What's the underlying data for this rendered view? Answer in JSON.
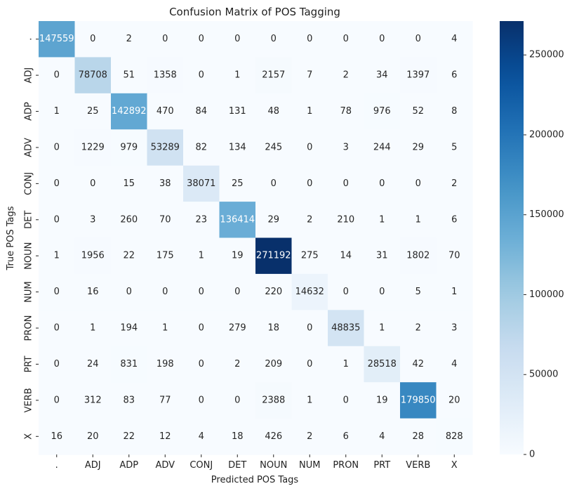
{
  "chart_data": {
    "type": "heatmap",
    "title": "Confusion Matrix of POS Tagging",
    "xlabel": "Predicted POS Tags",
    "ylabel": "True POS Tags",
    "x_categories": [
      ".",
      "ADJ",
      "ADP",
      "ADV",
      "CONJ",
      "DET",
      "NOUN",
      "NUM",
      "PRON",
      "PRT",
      "VERB",
      "X"
    ],
    "y_categories": [
      ".",
      "ADJ",
      "ADP",
      "ADV",
      "CONJ",
      "DET",
      "NOUN",
      "NUM",
      "PRON",
      "PRT",
      "VERB",
      "X"
    ],
    "values": [
      [
        147559,
        0,
        2,
        0,
        0,
        0,
        0,
        0,
        0,
        0,
        0,
        4
      ],
      [
        0,
        78708,
        51,
        1358,
        0,
        1,
        2157,
        7,
        2,
        34,
        1397,
        6
      ],
      [
        1,
        25,
        142892,
        470,
        84,
        131,
        48,
        1,
        78,
        976,
        52,
        8
      ],
      [
        0,
        1229,
        979,
        53289,
        82,
        134,
        245,
        0,
        3,
        244,
        29,
        5
      ],
      [
        0,
        0,
        15,
        38,
        38071,
        25,
        0,
        0,
        0,
        0,
        0,
        2
      ],
      [
        0,
        3,
        260,
        70,
        23,
        136414,
        29,
        2,
        210,
        1,
        1,
        6
      ],
      [
        1,
        1956,
        22,
        175,
        1,
        19,
        271192,
        275,
        14,
        31,
        1802,
        70
      ],
      [
        0,
        16,
        0,
        0,
        0,
        0,
        220,
        14632,
        0,
        0,
        5,
        1
      ],
      [
        0,
        1,
        194,
        1,
        0,
        279,
        18,
        0,
        48835,
        1,
        2,
        3
      ],
      [
        0,
        24,
        831,
        198,
        0,
        2,
        209,
        0,
        1,
        28518,
        42,
        4
      ],
      [
        0,
        312,
        83,
        77,
        0,
        0,
        2388,
        1,
        0,
        19,
        179850,
        20
      ],
      [
        16,
        20,
        22,
        12,
        4,
        18,
        426,
        2,
        6,
        4,
        28,
        828
      ]
    ],
    "colormap": "Blues",
    "color_range": [
      0,
      271192
    ],
    "colorbar": {
      "ticks": [
        0,
        50000,
        100000,
        150000,
        200000,
        250000
      ],
      "tick_labels": [
        "0",
        "50000",
        "100000",
        "150000",
        "200000",
        "250000"
      ]
    },
    "grid": false,
    "legend": "colorbar-right"
  }
}
